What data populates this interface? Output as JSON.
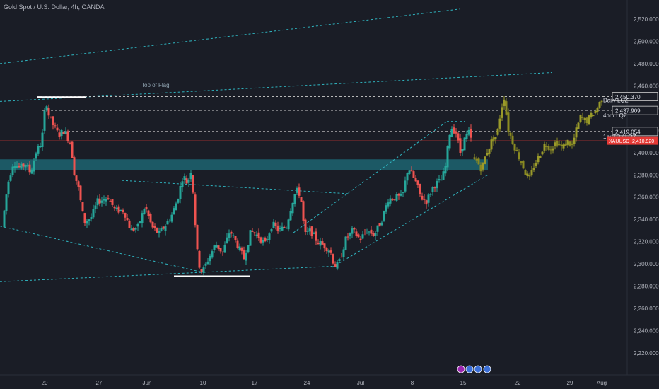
{
  "header": {
    "symbol_title": "Gold Spot / U.S. Dollar, 4h, OANDA"
  },
  "colors": {
    "background": "#1a1d26",
    "up_candle": "#26a69a",
    "down_candle": "#ef5350",
    "projection_candle": "#9a9a2a",
    "zone": "#1f8a99",
    "trendline": "#2fb5c0",
    "level_line": "#d0d0d0",
    "current_price": "#e53935"
  },
  "chart_data": {
    "type": "candlestick",
    "symbol": "XAUUSD",
    "timeframe": "4h",
    "ylim": [
      2215,
      2540
    ],
    "y_ticks": [
      "2,520.000",
      "2,500.000",
      "2,480.000",
      "2,460.000",
      "2,440.000",
      "2,420.000",
      "2,400.000",
      "2,380.000",
      "2,360.000",
      "2,340.000",
      "2,320.000",
      "2,300.000",
      "2,280.000",
      "2,260.000",
      "2,240.000",
      "2,220.000"
    ],
    "x_ticks": [
      "20",
      "27",
      "Jun",
      "10",
      "17",
      "24",
      "Jul",
      "8",
      "15",
      "22",
      "29",
      "Aug"
    ],
    "price_path": [
      {
        "t": 0,
        "p": 2333
      },
      {
        "t": 8,
        "p": 2372
      },
      {
        "t": 16,
        "p": 2392
      },
      {
        "t": 25,
        "p": 2386
      },
      {
        "t": 33,
        "p": 2390
      },
      {
        "t": 40,
        "p": 2382
      },
      {
        "t": 48,
        "p": 2400
      },
      {
        "t": 56,
        "p": 2410
      },
      {
        "t": 62,
        "p": 2448
      },
      {
        "t": 66,
        "p": 2434
      },
      {
        "t": 72,
        "p": 2425
      },
      {
        "t": 80,
        "p": 2416
      },
      {
        "t": 88,
        "p": 2420
      },
      {
        "t": 97,
        "p": 2408
      },
      {
        "t": 102,
        "p": 2382
      },
      {
        "t": 108,
        "p": 2368
      },
      {
        "t": 116,
        "p": 2337
      },
      {
        "t": 126,
        "p": 2342
      },
      {
        "t": 135,
        "p": 2356
      },
      {
        "t": 150,
        "p": 2360
      },
      {
        "t": 160,
        "p": 2348
      },
      {
        "t": 172,
        "p": 2348
      },
      {
        "t": 182,
        "p": 2330
      },
      {
        "t": 192,
        "p": 2333
      },
      {
        "t": 202,
        "p": 2352
      },
      {
        "t": 212,
        "p": 2333
      },
      {
        "t": 222,
        "p": 2327
      },
      {
        "t": 232,
        "p": 2336
      },
      {
        "t": 240,
        "p": 2344
      },
      {
        "t": 248,
        "p": 2358
      },
      {
        "t": 256,
        "p": 2380
      },
      {
        "t": 262,
        "p": 2372
      },
      {
        "t": 268,
        "p": 2386
      },
      {
        "t": 272,
        "p": 2345
      },
      {
        "t": 277,
        "p": 2302
      },
      {
        "t": 283,
        "p": 2292
      },
      {
        "t": 292,
        "p": 2305
      },
      {
        "t": 302,
        "p": 2318
      },
      {
        "t": 312,
        "p": 2310
      },
      {
        "t": 322,
        "p": 2330
      },
      {
        "t": 332,
        "p": 2318
      },
      {
        "t": 342,
        "p": 2305
      },
      {
        "t": 352,
        "p": 2330
      },
      {
        "t": 362,
        "p": 2325
      },
      {
        "t": 372,
        "p": 2318
      },
      {
        "t": 382,
        "p": 2336
      },
      {
        "t": 392,
        "p": 2330
      },
      {
        "t": 402,
        "p": 2334
      },
      {
        "t": 410,
        "p": 2355
      },
      {
        "t": 416,
        "p": 2366
      },
      {
        "t": 422,
        "p": 2362
      },
      {
        "t": 428,
        "p": 2326
      },
      {
        "t": 436,
        "p": 2330
      },
      {
        "t": 446,
        "p": 2320
      },
      {
        "t": 456,
        "p": 2316
      },
      {
        "t": 464,
        "p": 2312
      },
      {
        "t": 470,
        "p": 2298
      },
      {
        "t": 476,
        "p": 2300
      },
      {
        "t": 486,
        "p": 2322
      },
      {
        "t": 496,
        "p": 2330
      },
      {
        "t": 506,
        "p": 2322
      },
      {
        "t": 516,
        "p": 2330
      },
      {
        "t": 526,
        "p": 2326
      },
      {
        "t": 536,
        "p": 2338
      },
      {
        "t": 546,
        "p": 2358
      },
      {
        "t": 556,
        "p": 2360
      },
      {
        "t": 566,
        "p": 2360
      },
      {
        "t": 574,
        "p": 2387
      },
      {
        "t": 580,
        "p": 2380
      },
      {
        "t": 586,
        "p": 2372
      },
      {
        "t": 592,
        "p": 2360
      },
      {
        "t": 600,
        "p": 2356
      },
      {
        "t": 610,
        "p": 2370
      },
      {
        "t": 622,
        "p": 2376
      },
      {
        "t": 628,
        "p": 2390
      },
      {
        "t": 632,
        "p": 2416
      },
      {
        "t": 636,
        "p": 2422
      },
      {
        "t": 642,
        "p": 2418
      },
      {
        "t": 648,
        "p": 2400
      },
      {
        "t": 654,
        "p": 2412
      },
      {
        "t": 660,
        "p": 2418
      },
      {
        "t": 665,
        "p": 2408
      }
    ],
    "projection_path": [
      {
        "t": 665,
        "p": 2396
      },
      {
        "t": 672,
        "p": 2392
      },
      {
        "t": 678,
        "p": 2385
      },
      {
        "t": 684,
        "p": 2398
      },
      {
        "t": 692,
        "p": 2410
      },
      {
        "t": 700,
        "p": 2416
      },
      {
        "t": 706,
        "p": 2440
      },
      {
        "t": 710,
        "p": 2450
      },
      {
        "t": 716,
        "p": 2420
      },
      {
        "t": 722,
        "p": 2410
      },
      {
        "t": 728,
        "p": 2400
      },
      {
        "t": 734,
        "p": 2392
      },
      {
        "t": 740,
        "p": 2382
      },
      {
        "t": 746,
        "p": 2376
      },
      {
        "t": 752,
        "p": 2388
      },
      {
        "t": 760,
        "p": 2398
      },
      {
        "t": 768,
        "p": 2408
      },
      {
        "t": 776,
        "p": 2404
      },
      {
        "t": 784,
        "p": 2410
      },
      {
        "t": 792,
        "p": 2404
      },
      {
        "t": 800,
        "p": 2410
      },
      {
        "t": 806,
        "p": 2406
      },
      {
        "t": 812,
        "p": 2420
      },
      {
        "t": 818,
        "p": 2432
      },
      {
        "t": 826,
        "p": 2428
      },
      {
        "t": 834,
        "p": 2434
      },
      {
        "t": 840,
        "p": 2438
      },
      {
        "t": 846,
        "p": 2446
      },
      {
        "t": 850,
        "p": 2450
      }
    ],
    "levels": [
      {
        "name": "Daily LQZ",
        "price": 2450.37,
        "label": "2,450.370",
        "caption": "Daily LQZ"
      },
      {
        "name": "4hr LQZ",
        "price": 2437.909,
        "label": "2,437.909",
        "caption": "4hr / LQZ"
      },
      {
        "name": "1hr TR LQZ",
        "price": 2419.054,
        "label": "2,419.054",
        "caption": "1hr TR / LQZ"
      }
    ],
    "current_price": {
      "symbol": "XAUUSD",
      "label": "2,410.920",
      "price": 2410.92
    },
    "zone": {
      "from": 2384,
      "to": 2394
    },
    "annotations": [
      {
        "text": "Top of Flag"
      }
    ]
  }
}
